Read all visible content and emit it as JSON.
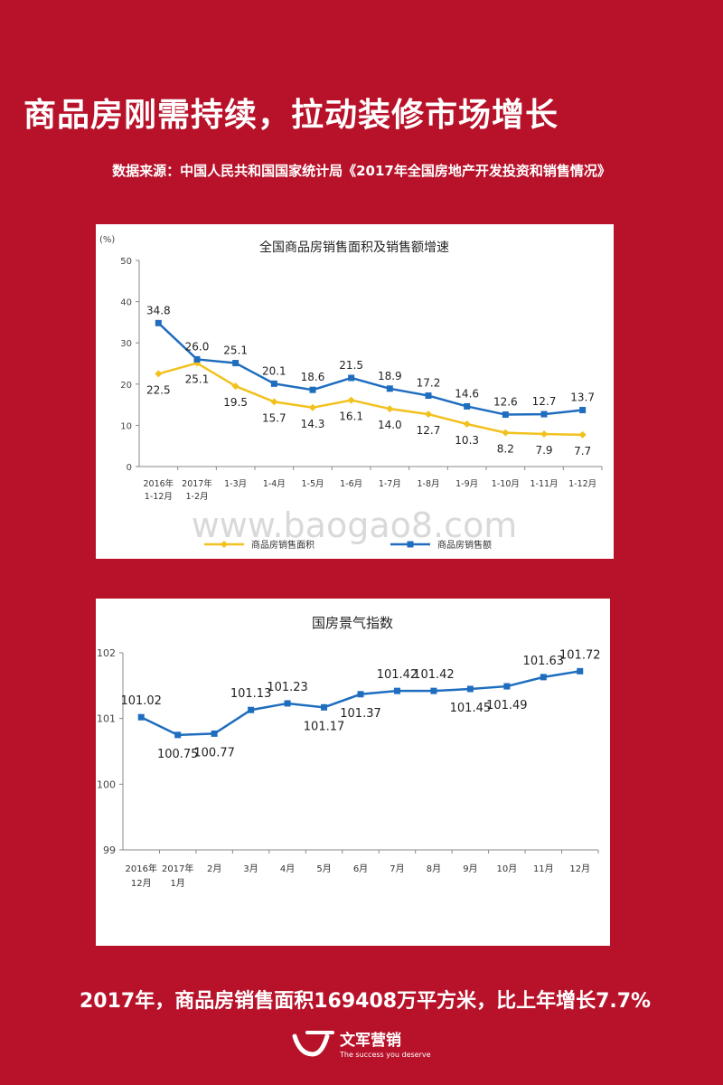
{
  "page": {
    "title": "商品房刚需持续，拉动装修市场增长",
    "source": "数据来源：中国人民共和国国家统计局《2017年全国房地产开发投资和销售情况》",
    "summary": "2017年，商品房销售面积169408万平方米，比上年增长7.7%",
    "watermark": "www.baogao8.com",
    "logo": {
      "name": "文军营销",
      "slogan": "The success you deserve"
    }
  },
  "chart_data": [
    {
      "type": "line",
      "title": "全国商品房销售面积及销售额增速",
      "unit_label": "(%)",
      "ylim": [
        0,
        50
      ],
      "yticks": [
        0,
        10,
        20,
        30,
        40,
        50
      ],
      "categories": [
        [
          "2016年",
          "1-12月"
        ],
        [
          "2017年",
          "1-2月"
        ],
        [
          "1-3月"
        ],
        [
          "1-4月"
        ],
        [
          "1-5月"
        ],
        [
          "1-6月"
        ],
        [
          "1-7月"
        ],
        [
          "1-8月"
        ],
        [
          "1-9月"
        ],
        [
          "1-10月"
        ],
        [
          "1-11月"
        ],
        [
          "1-12月"
        ]
      ],
      "series": [
        {
          "name": "商品房销售面积",
          "color": "#f2c11c",
          "marker": "diamond",
          "values": [
            22.5,
            25.1,
            19.5,
            15.7,
            14.3,
            16.1,
            14.0,
            12.7,
            10.3,
            8.2,
            7.9,
            7.7
          ]
        },
        {
          "name": "商品房销售额",
          "color": "#1f6dbf",
          "marker": "square",
          "values": [
            34.8,
            26.0,
            25.1,
            20.1,
            18.6,
            21.5,
            18.9,
            17.2,
            14.6,
            12.6,
            12.7,
            13.7
          ]
        }
      ],
      "legend": "bottom"
    },
    {
      "type": "line",
      "title": "国房景气指数",
      "ylim": [
        99,
        102
      ],
      "yticks": [
        99,
        100,
        101,
        102
      ],
      "categories": [
        [
          "2016年",
          "12月"
        ],
        [
          "2017年",
          "1月"
        ],
        [
          "2月"
        ],
        [
          "3月"
        ],
        [
          "4月"
        ],
        [
          "5月"
        ],
        [
          "6月"
        ],
        [
          "7月"
        ],
        [
          "8月"
        ],
        [
          "9月"
        ],
        [
          "10月"
        ],
        [
          "11月"
        ],
        [
          "12月"
        ]
      ],
      "series": [
        {
          "name": "国房景气指数",
          "color": "#1f6dbf",
          "marker": "square",
          "values": [
            101.02,
            100.75,
            100.77,
            101.13,
            101.23,
            101.17,
            101.37,
            101.42,
            101.42,
            101.45,
            101.49,
            101.63,
            101.72
          ]
        }
      ]
    }
  ]
}
